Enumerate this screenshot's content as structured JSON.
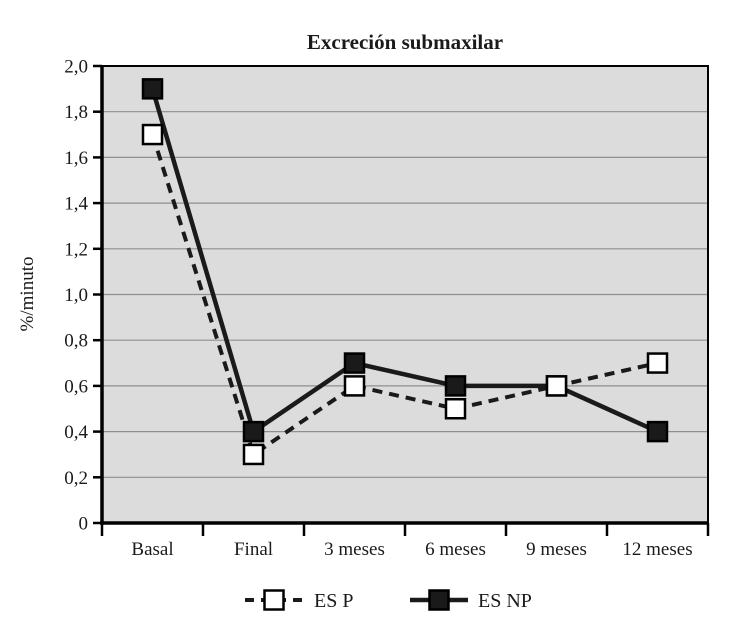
{
  "chart_data": {
    "type": "line",
    "title": "Excreción submaxilar",
    "xlabel": "",
    "ylabel": "%/minuto",
    "categories": [
      "Basal",
      "Final",
      "3 meses",
      "6 meses",
      "9 meses",
      "12 meses"
    ],
    "series": [
      {
        "name": "ES P",
        "values": [
          1.7,
          0.3,
          0.6,
          0.5,
          0.6,
          0.7
        ],
        "line_style": "dashed",
        "marker": "open-square",
        "color": "#1a1a1a",
        "marker_fill": "#ffffff"
      },
      {
        "name": "ES NP",
        "values": [
          1.9,
          0.4,
          0.7,
          0.6,
          0.6,
          0.4
        ],
        "line_style": "solid",
        "marker": "filled-square",
        "color": "#1a1a1a",
        "marker_fill": "#1a1a1a"
      }
    ],
    "ylim": [
      0,
      2.0
    ],
    "ytick_step": 0.2,
    "ytick_labels": [
      "0",
      "0,2",
      "0,4",
      "0,6",
      "0,8",
      "1,0",
      "1,2",
      "1,4",
      "1,6",
      "1,8",
      "2,0"
    ],
    "decimal_separator": ",",
    "grid": true,
    "legend_position": "bottom",
    "plot_bg": "#dcdcdc",
    "grid_color": "#8f8f8f",
    "frame_color": "#000000"
  }
}
